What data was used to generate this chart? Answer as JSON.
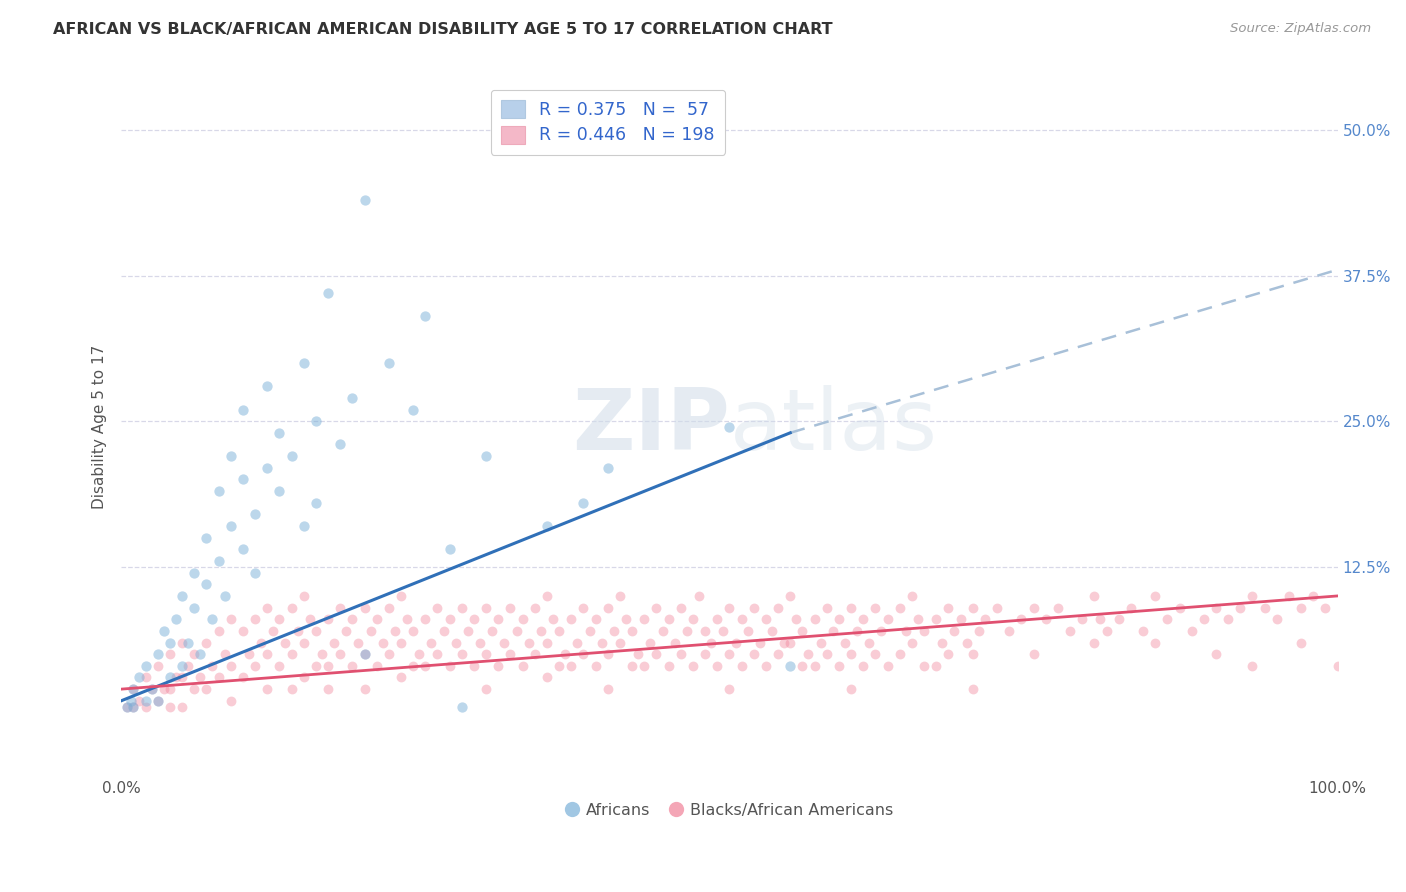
{
  "title": "AFRICAN VS BLACK/AFRICAN AMERICAN DISABILITY AGE 5 TO 17 CORRELATION CHART",
  "source": "Source: ZipAtlas.com",
  "ylabel": "Disability Age 5 to 17",
  "ytick_labels": [
    "12.5%",
    "25.0%",
    "37.5%",
    "50.0%"
  ],
  "ytick_values": [
    0.125,
    0.25,
    0.375,
    0.5
  ],
  "xlim": [
    0,
    1.0
  ],
  "ylim": [
    -0.055,
    0.545
  ],
  "blue_color": "#7ab0d8",
  "pink_color": "#f08098",
  "blue_line_color": "#3070b8",
  "pink_line_color": "#e05070",
  "dashed_line_color": "#a8c0d8",
  "watermark_color": "#d0dce8",
  "background_color": "#ffffff",
  "grid_color": "#d8d8e8",
  "blue_scatter": [
    [
      0.005,
      0.005
    ],
    [
      0.008,
      0.01
    ],
    [
      0.01,
      0.02
    ],
    [
      0.01,
      0.005
    ],
    [
      0.015,
      0.03
    ],
    [
      0.02,
      0.01
    ],
    [
      0.02,
      0.04
    ],
    [
      0.025,
      0.02
    ],
    [
      0.03,
      0.05
    ],
    [
      0.03,
      0.01
    ],
    [
      0.035,
      0.07
    ],
    [
      0.04,
      0.03
    ],
    [
      0.04,
      0.06
    ],
    [
      0.045,
      0.08
    ],
    [
      0.05,
      0.04
    ],
    [
      0.05,
      0.1
    ],
    [
      0.055,
      0.06
    ],
    [
      0.06,
      0.09
    ],
    [
      0.06,
      0.12
    ],
    [
      0.065,
      0.05
    ],
    [
      0.07,
      0.11
    ],
    [
      0.07,
      0.15
    ],
    [
      0.075,
      0.08
    ],
    [
      0.08,
      0.13
    ],
    [
      0.08,
      0.19
    ],
    [
      0.085,
      0.1
    ],
    [
      0.09,
      0.16
    ],
    [
      0.09,
      0.22
    ],
    [
      0.1,
      0.14
    ],
    [
      0.1,
      0.2
    ],
    [
      0.1,
      0.26
    ],
    [
      0.11,
      0.17
    ],
    [
      0.11,
      0.12
    ],
    [
      0.12,
      0.21
    ],
    [
      0.12,
      0.28
    ],
    [
      0.13,
      0.19
    ],
    [
      0.13,
      0.24
    ],
    [
      0.14,
      0.22
    ],
    [
      0.15,
      0.3
    ],
    [
      0.15,
      0.16
    ],
    [
      0.16,
      0.25
    ],
    [
      0.16,
      0.18
    ],
    [
      0.17,
      0.36
    ],
    [
      0.18,
      0.23
    ],
    [
      0.19,
      0.27
    ],
    [
      0.2,
      0.44
    ],
    [
      0.2,
      0.05
    ],
    [
      0.22,
      0.3
    ],
    [
      0.24,
      0.26
    ],
    [
      0.25,
      0.34
    ],
    [
      0.27,
      0.14
    ],
    [
      0.28,
      0.005
    ],
    [
      0.3,
      0.22
    ],
    [
      0.35,
      0.16
    ],
    [
      0.38,
      0.18
    ],
    [
      0.4,
      0.21
    ],
    [
      0.5,
      0.245
    ],
    [
      0.55,
      0.04
    ]
  ],
  "pink_scatter": [
    [
      0.005,
      0.005
    ],
    [
      0.01,
      0.02
    ],
    [
      0.01,
      0.005
    ],
    [
      0.015,
      0.01
    ],
    [
      0.02,
      0.03
    ],
    [
      0.02,
      0.005
    ],
    [
      0.025,
      0.02
    ],
    [
      0.03,
      0.04
    ],
    [
      0.03,
      0.01
    ],
    [
      0.035,
      0.02
    ],
    [
      0.04,
      0.05
    ],
    [
      0.04,
      0.02
    ],
    [
      0.04,
      0.005
    ],
    [
      0.045,
      0.03
    ],
    [
      0.05,
      0.06
    ],
    [
      0.05,
      0.03
    ],
    [
      0.05,
      0.005
    ],
    [
      0.055,
      0.04
    ],
    [
      0.06,
      0.05
    ],
    [
      0.06,
      0.02
    ],
    [
      0.065,
      0.03
    ],
    [
      0.07,
      0.06
    ],
    [
      0.07,
      0.02
    ],
    [
      0.075,
      0.04
    ],
    [
      0.08,
      0.07
    ],
    [
      0.08,
      0.03
    ],
    [
      0.085,
      0.05
    ],
    [
      0.09,
      0.08
    ],
    [
      0.09,
      0.04
    ],
    [
      0.09,
      0.01
    ],
    [
      0.1,
      0.07
    ],
    [
      0.1,
      0.03
    ],
    [
      0.105,
      0.05
    ],
    [
      0.11,
      0.08
    ],
    [
      0.11,
      0.04
    ],
    [
      0.115,
      0.06
    ],
    [
      0.12,
      0.09
    ],
    [
      0.12,
      0.05
    ],
    [
      0.12,
      0.02
    ],
    [
      0.125,
      0.07
    ],
    [
      0.13,
      0.08
    ],
    [
      0.13,
      0.04
    ],
    [
      0.135,
      0.06
    ],
    [
      0.14,
      0.09
    ],
    [
      0.14,
      0.05
    ],
    [
      0.14,
      0.02
    ],
    [
      0.145,
      0.07
    ],
    [
      0.15,
      0.1
    ],
    [
      0.15,
      0.06
    ],
    [
      0.15,
      0.03
    ],
    [
      0.155,
      0.08
    ],
    [
      0.16,
      0.07
    ],
    [
      0.16,
      0.04
    ],
    [
      0.165,
      0.05
    ],
    [
      0.17,
      0.08
    ],
    [
      0.17,
      0.04
    ],
    [
      0.17,
      0.02
    ],
    [
      0.175,
      0.06
    ],
    [
      0.18,
      0.09
    ],
    [
      0.18,
      0.05
    ],
    [
      0.185,
      0.07
    ],
    [
      0.19,
      0.08
    ],
    [
      0.19,
      0.04
    ],
    [
      0.195,
      0.06
    ],
    [
      0.2,
      0.09
    ],
    [
      0.2,
      0.05
    ],
    [
      0.2,
      0.02
    ],
    [
      0.205,
      0.07
    ],
    [
      0.21,
      0.08
    ],
    [
      0.21,
      0.04
    ],
    [
      0.215,
      0.06
    ],
    [
      0.22,
      0.09
    ],
    [
      0.22,
      0.05
    ],
    [
      0.225,
      0.07
    ],
    [
      0.23,
      0.1
    ],
    [
      0.23,
      0.06
    ],
    [
      0.23,
      0.03
    ],
    [
      0.235,
      0.08
    ],
    [
      0.24,
      0.07
    ],
    [
      0.24,
      0.04
    ],
    [
      0.245,
      0.05
    ],
    [
      0.25,
      0.08
    ],
    [
      0.25,
      0.04
    ],
    [
      0.255,
      0.06
    ],
    [
      0.26,
      0.09
    ],
    [
      0.26,
      0.05
    ],
    [
      0.265,
      0.07
    ],
    [
      0.27,
      0.08
    ],
    [
      0.27,
      0.04
    ],
    [
      0.275,
      0.06
    ],
    [
      0.28,
      0.09
    ],
    [
      0.28,
      0.05
    ],
    [
      0.285,
      0.07
    ],
    [
      0.29,
      0.08
    ],
    [
      0.29,
      0.04
    ],
    [
      0.295,
      0.06
    ],
    [
      0.3,
      0.09
    ],
    [
      0.3,
      0.05
    ],
    [
      0.3,
      0.02
    ],
    [
      0.305,
      0.07
    ],
    [
      0.31,
      0.08
    ],
    [
      0.31,
      0.04
    ],
    [
      0.315,
      0.06
    ],
    [
      0.32,
      0.09
    ],
    [
      0.32,
      0.05
    ],
    [
      0.325,
      0.07
    ],
    [
      0.33,
      0.08
    ],
    [
      0.33,
      0.04
    ],
    [
      0.335,
      0.06
    ],
    [
      0.34,
      0.09
    ],
    [
      0.34,
      0.05
    ],
    [
      0.345,
      0.07
    ],
    [
      0.35,
      0.1
    ],
    [
      0.35,
      0.06
    ],
    [
      0.35,
      0.03
    ],
    [
      0.355,
      0.08
    ],
    [
      0.36,
      0.07
    ],
    [
      0.36,
      0.04
    ],
    [
      0.365,
      0.05
    ],
    [
      0.37,
      0.08
    ],
    [
      0.37,
      0.04
    ],
    [
      0.375,
      0.06
    ],
    [
      0.38,
      0.09
    ],
    [
      0.38,
      0.05
    ],
    [
      0.385,
      0.07
    ],
    [
      0.39,
      0.08
    ],
    [
      0.39,
      0.04
    ],
    [
      0.395,
      0.06
    ],
    [
      0.4,
      0.09
    ],
    [
      0.4,
      0.05
    ],
    [
      0.4,
      0.02
    ],
    [
      0.405,
      0.07
    ],
    [
      0.41,
      0.1
    ],
    [
      0.41,
      0.06
    ],
    [
      0.415,
      0.08
    ],
    [
      0.42,
      0.07
    ],
    [
      0.42,
      0.04
    ],
    [
      0.425,
      0.05
    ],
    [
      0.43,
      0.08
    ],
    [
      0.43,
      0.04
    ],
    [
      0.435,
      0.06
    ],
    [
      0.44,
      0.09
    ],
    [
      0.44,
      0.05
    ],
    [
      0.445,
      0.07
    ],
    [
      0.45,
      0.08
    ],
    [
      0.45,
      0.04
    ],
    [
      0.455,
      0.06
    ],
    [
      0.46,
      0.09
    ],
    [
      0.46,
      0.05
    ],
    [
      0.465,
      0.07
    ],
    [
      0.47,
      0.08
    ],
    [
      0.47,
      0.04
    ],
    [
      0.475,
      0.1
    ],
    [
      0.48,
      0.07
    ],
    [
      0.48,
      0.05
    ],
    [
      0.485,
      0.06
    ],
    [
      0.49,
      0.08
    ],
    [
      0.49,
      0.04
    ],
    [
      0.495,
      0.07
    ],
    [
      0.5,
      0.09
    ],
    [
      0.5,
      0.05
    ],
    [
      0.5,
      0.02
    ],
    [
      0.505,
      0.06
    ],
    [
      0.51,
      0.08
    ],
    [
      0.51,
      0.04
    ],
    [
      0.515,
      0.07
    ],
    [
      0.52,
      0.09
    ],
    [
      0.52,
      0.05
    ],
    [
      0.525,
      0.06
    ],
    [
      0.53,
      0.08
    ],
    [
      0.53,
      0.04
    ],
    [
      0.535,
      0.07
    ],
    [
      0.54,
      0.09
    ],
    [
      0.54,
      0.05
    ],
    [
      0.545,
      0.06
    ],
    [
      0.55,
      0.1
    ],
    [
      0.55,
      0.06
    ],
    [
      0.555,
      0.08
    ],
    [
      0.56,
      0.07
    ],
    [
      0.56,
      0.04
    ],
    [
      0.565,
      0.05
    ],
    [
      0.57,
      0.08
    ],
    [
      0.57,
      0.04
    ],
    [
      0.575,
      0.06
    ],
    [
      0.58,
      0.09
    ],
    [
      0.58,
      0.05
    ],
    [
      0.585,
      0.07
    ],
    [
      0.59,
      0.08
    ],
    [
      0.59,
      0.04
    ],
    [
      0.595,
      0.06
    ],
    [
      0.6,
      0.09
    ],
    [
      0.6,
      0.05
    ],
    [
      0.6,
      0.02
    ],
    [
      0.605,
      0.07
    ],
    [
      0.61,
      0.08
    ],
    [
      0.61,
      0.04
    ],
    [
      0.615,
      0.06
    ],
    [
      0.62,
      0.09
    ],
    [
      0.62,
      0.05
    ],
    [
      0.625,
      0.07
    ],
    [
      0.63,
      0.08
    ],
    [
      0.63,
      0.04
    ],
    [
      0.64,
      0.09
    ],
    [
      0.64,
      0.05
    ],
    [
      0.645,
      0.07
    ],
    [
      0.65,
      0.1
    ],
    [
      0.65,
      0.06
    ],
    [
      0.655,
      0.08
    ],
    [
      0.66,
      0.07
    ],
    [
      0.66,
      0.04
    ],
    [
      0.67,
      0.08
    ],
    [
      0.67,
      0.04
    ],
    [
      0.675,
      0.06
    ],
    [
      0.68,
      0.09
    ],
    [
      0.68,
      0.05
    ],
    [
      0.685,
      0.07
    ],
    [
      0.69,
      0.08
    ],
    [
      0.695,
      0.06
    ],
    [
      0.7,
      0.09
    ],
    [
      0.7,
      0.05
    ],
    [
      0.7,
      0.02
    ],
    [
      0.705,
      0.07
    ],
    [
      0.71,
      0.08
    ],
    [
      0.72,
      0.09
    ],
    [
      0.73,
      0.07
    ],
    [
      0.74,
      0.08
    ],
    [
      0.75,
      0.09
    ],
    [
      0.75,
      0.05
    ],
    [
      0.76,
      0.08
    ],
    [
      0.77,
      0.09
    ],
    [
      0.78,
      0.07
    ],
    [
      0.79,
      0.08
    ],
    [
      0.8,
      0.1
    ],
    [
      0.8,
      0.06
    ],
    [
      0.805,
      0.08
    ],
    [
      0.81,
      0.07
    ],
    [
      0.82,
      0.08
    ],
    [
      0.83,
      0.09
    ],
    [
      0.84,
      0.07
    ],
    [
      0.85,
      0.1
    ],
    [
      0.85,
      0.06
    ],
    [
      0.86,
      0.08
    ],
    [
      0.87,
      0.09
    ],
    [
      0.88,
      0.07
    ],
    [
      0.89,
      0.08
    ],
    [
      0.9,
      0.09
    ],
    [
      0.9,
      0.05
    ],
    [
      0.91,
      0.08
    ],
    [
      0.92,
      0.09
    ],
    [
      0.93,
      0.1
    ],
    [
      0.93,
      0.04
    ],
    [
      0.94,
      0.09
    ],
    [
      0.95,
      0.08
    ],
    [
      0.96,
      0.1
    ],
    [
      0.97,
      0.09
    ],
    [
      0.97,
      0.06
    ],
    [
      0.98,
      0.1
    ],
    [
      0.99,
      0.09
    ],
    [
      1.0,
      0.04
    ]
  ],
  "blue_line_x": [
    0.0,
    0.55
  ],
  "blue_line_y": [
    0.01,
    0.24
  ],
  "dashed_line_x": [
    0.55,
    1.0
  ],
  "dashed_line_y": [
    0.24,
    0.38
  ],
  "pink_line_x": [
    0.0,
    1.0
  ],
  "pink_line_y": [
    0.02,
    0.1
  ]
}
